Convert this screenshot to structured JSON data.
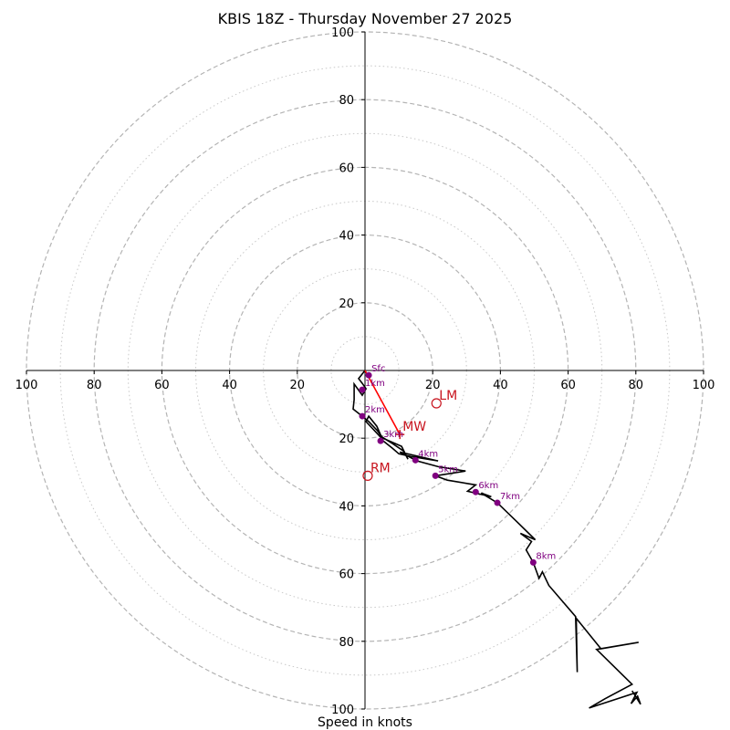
{
  "chart_data": {
    "type": "hodograph",
    "title": "KBIS 18Z - Thursday November 27 2025",
    "xlabel": "Speed in knots",
    "xlim": [
      -100,
      100
    ],
    "ylim": [
      -100,
      100
    ],
    "grid": true,
    "rings_dashed": [
      20,
      40,
      60,
      80,
      100
    ],
    "rings_dotted": [
      10,
      30,
      50,
      70,
      90
    ],
    "x_ticks": [
      {
        "value": -100,
        "label": "100"
      },
      {
        "value": -80,
        "label": "80"
      },
      {
        "value": -60,
        "label": "60"
      },
      {
        "value": -40,
        "label": "40"
      },
      {
        "value": -20,
        "label": "20"
      },
      {
        "value": 20,
        "label": "20"
      },
      {
        "value": 40,
        "label": "40"
      },
      {
        "value": 60,
        "label": "60"
      },
      {
        "value": 80,
        "label": "80"
      },
      {
        "value": 100,
        "label": "100"
      }
    ],
    "y_ticks": [
      {
        "value": 100,
        "label": "100"
      },
      {
        "value": 80,
        "label": "80"
      },
      {
        "value": 60,
        "label": "60"
      },
      {
        "value": 40,
        "label": "40"
      },
      {
        "value": 20,
        "label": "20"
      },
      {
        "value": -20,
        "label": "20"
      },
      {
        "value": -40,
        "label": "40"
      },
      {
        "value": -60,
        "label": "60"
      },
      {
        "value": -80,
        "label": "80"
      },
      {
        "value": -100,
        "label": "100"
      }
    ],
    "hodograph_trace": [
      [
        0.0,
        0.0
      ],
      [
        -1.9,
        -2.4
      ],
      [
        -0.8,
        -3.8
      ],
      [
        0.3,
        -5.4
      ],
      [
        -0.8,
        -7.3
      ],
      [
        -3.2,
        -4.0
      ],
      [
        -3.2,
        -8.6
      ],
      [
        -3.5,
        -11.4
      ],
      [
        -0.8,
        -13.5
      ],
      [
        1.1,
        -15.1
      ],
      [
        3.5,
        -17.6
      ],
      [
        5.1,
        -19.7
      ],
      [
        8.1,
        -21.6
      ],
      [
        11.4,
        -23.8
      ],
      [
        12.7,
        -26.2
      ],
      [
        10.8,
        -22.4
      ],
      [
        4.6,
        -19.7
      ],
      [
        0.3,
        -15.1
      ],
      [
        1.1,
        -13.5
      ],
      [
        3.5,
        -16.5
      ],
      [
        5.4,
        -20.8
      ],
      [
        8.1,
        -23.0
      ],
      [
        10.0,
        -24.6
      ],
      [
        13.5,
        -25.4
      ],
      [
        21.6,
        -26.7
      ],
      [
        10.3,
        -24.1
      ],
      [
        15.4,
        -26.7
      ],
      [
        21.6,
        -28.4
      ],
      [
        29.7,
        -29.7
      ],
      [
        20.8,
        -31.1
      ],
      [
        24.3,
        -32.4
      ],
      [
        32.7,
        -33.8
      ],
      [
        30.3,
        -35.7
      ],
      [
        37.3,
        -37.3
      ],
      [
        34.3,
        -36.2
      ],
      [
        39.1,
        -39.1
      ],
      [
        45.1,
        -44.9
      ],
      [
        50.3,
        -50.0
      ],
      [
        45.9,
        -48.1
      ],
      [
        49.2,
        -50.5
      ],
      [
        47.6,
        -53.0
      ],
      [
        49.7,
        -56.7
      ],
      [
        51.4,
        -61.4
      ],
      [
        52.4,
        -59.5
      ],
      [
        54.3,
        -63.5
      ],
      [
        62.2,
        -72.7
      ],
      [
        62.7,
        -89.1
      ],
      [
        62.4,
        -73.2
      ],
      [
        69.7,
        -82.2
      ],
      [
        80.8,
        -80.3
      ],
      [
        68.4,
        -82.4
      ],
      [
        78.9,
        -92.7
      ],
      [
        70.8,
        -97.0
      ],
      [
        66.2,
        -99.7
      ],
      [
        80.3,
        -95.1
      ],
      [
        78.6,
        -98.4
      ],
      [
        80.5,
        -96.2
      ],
      [
        81.4,
        -98.6
      ],
      [
        78.9,
        -94.6
      ]
    ],
    "height_markers": [
      {
        "label": "Sfc",
        "u": 1.1,
        "v": -1.4
      },
      {
        "label": "1km",
        "u": -0.8,
        "v": -5.7
      },
      {
        "label": "2km",
        "u": -0.8,
        "v": -13.5
      },
      {
        "label": "3km",
        "u": 4.6,
        "v": -20.8
      },
      {
        "label": "4km",
        "u": 14.9,
        "v": -26.5
      },
      {
        "label": "5km",
        "u": 20.8,
        "v": -31.1
      },
      {
        "label": "6km",
        "u": 32.7,
        "v": -35.9
      },
      {
        "label": "7km",
        "u": 39.1,
        "v": -39.1
      },
      {
        "label": "8km",
        "u": 49.7,
        "v": -56.7
      }
    ],
    "storm_motion": {
      "vector_from": [
        0.0,
        0.0
      ],
      "vector_to": [
        10.3,
        -18.9
      ],
      "points": [
        {
          "label": "MW",
          "u": 10.3,
          "v": -18.9,
          "marker": "plus"
        },
        {
          "label": "LM",
          "u": 21.1,
          "v": -9.7,
          "marker": "circle"
        },
        {
          "label": "RM",
          "u": 0.8,
          "v": -31.1,
          "marker": "circle"
        }
      ]
    },
    "colors": {
      "trace": "#000000",
      "markers": "#800080",
      "storm": "#c8141e",
      "vector": "#ff0000",
      "grid": "#b4b4b4",
      "grid_minor": "#c8c8c8",
      "axis": "#000000",
      "text": "#000000"
    }
  }
}
